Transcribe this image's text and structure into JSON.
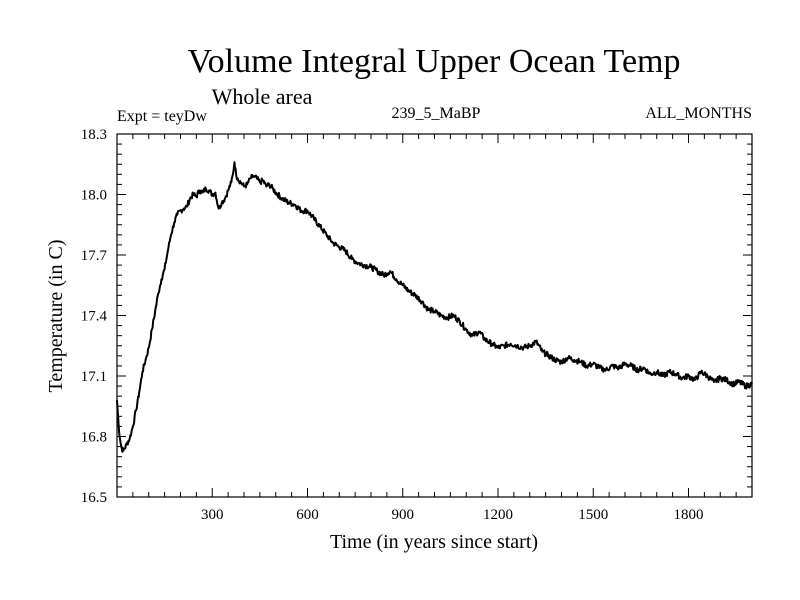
{
  "chart_data": {
    "type": "line",
    "title": "Volume Integral Upper Ocean Temp",
    "subtitle": "Whole area",
    "expt_label": "Expt = teyDw",
    "run_label": "239_5_MaBP",
    "period_label": "ALL_MONTHS",
    "xlabel": "Time (in years since start)",
    "ylabel": "Temperature (in C)",
    "xlim": [
      0,
      2000
    ],
    "ylim": [
      16.5,
      18.3
    ],
    "xticks": [
      300,
      600,
      900,
      1200,
      1500,
      1800
    ],
    "xtick_labels": [
      "300",
      "600",
      "900",
      "1200",
      "1500",
      "1800"
    ],
    "yticks": [
      16.5,
      16.8,
      17.1,
      17.4,
      17.7,
      18.0,
      18.3
    ],
    "ytick_labels": [
      "16.5",
      "16.8",
      "17.1",
      "17.4",
      "17.7",
      "18.0",
      "18.3"
    ],
    "series": [
      {
        "name": "Temperature",
        "color": "#000000",
        "x": [
          0,
          5,
          10,
          15,
          20,
          30,
          40,
          50,
          60,
          70,
          80,
          90,
          100,
          110,
          120,
          130,
          140,
          150,
          160,
          170,
          180,
          190,
          200,
          210,
          220,
          230,
          240,
          250,
          260,
          270,
          280,
          290,
          300,
          310,
          320,
          330,
          340,
          350,
          360,
          365,
          370,
          375,
          380,
          390,
          400,
          410,
          420,
          430,
          440,
          450,
          460,
          470,
          480,
          490,
          500,
          520,
          540,
          560,
          580,
          600,
          620,
          640,
          660,
          680,
          700,
          720,
          740,
          760,
          780,
          800,
          820,
          840,
          860,
          880,
          900,
          920,
          940,
          960,
          980,
          1000,
          1020,
          1040,
          1060,
          1080,
          1100,
          1120,
          1140,
          1160,
          1180,
          1200,
          1220,
          1240,
          1260,
          1280,
          1300,
          1320,
          1340,
          1360,
          1380,
          1400,
          1420,
          1440,
          1460,
          1480,
          1500,
          1520,
          1540,
          1560,
          1580,
          1600,
          1620,
          1640,
          1660,
          1680,
          1700,
          1720,
          1740,
          1760,
          1780,
          1800,
          1820,
          1840,
          1860,
          1880,
          1900,
          1920,
          1940,
          1960,
          1980,
          2000
        ],
        "y": [
          16.98,
          16.86,
          16.78,
          16.74,
          16.73,
          16.76,
          16.79,
          16.85,
          16.93,
          17.02,
          17.12,
          17.18,
          17.24,
          17.33,
          17.42,
          17.51,
          17.58,
          17.63,
          17.72,
          17.8,
          17.86,
          17.9,
          17.92,
          17.93,
          17.94,
          17.98,
          18.0,
          17.99,
          18.02,
          18.01,
          18.03,
          18.02,
          18.0,
          18.01,
          17.93,
          17.96,
          17.98,
          18.02,
          18.06,
          18.1,
          18.16,
          18.1,
          18.08,
          18.06,
          18.04,
          18.05,
          18.08,
          18.09,
          18.08,
          18.06,
          18.07,
          18.04,
          18.05,
          18.03,
          18.01,
          17.98,
          17.96,
          17.95,
          17.92,
          17.92,
          17.88,
          17.84,
          17.8,
          17.76,
          17.74,
          17.72,
          17.68,
          17.66,
          17.65,
          17.64,
          17.62,
          17.6,
          17.62,
          17.58,
          17.55,
          17.52,
          17.5,
          17.47,
          17.43,
          17.42,
          17.4,
          17.39,
          17.4,
          17.37,
          17.33,
          17.3,
          17.32,
          17.28,
          17.26,
          17.24,
          17.25,
          17.26,
          17.25,
          17.24,
          17.25,
          17.27,
          17.22,
          17.2,
          17.18,
          17.17,
          17.19,
          17.18,
          17.17,
          17.15,
          17.16,
          17.14,
          17.13,
          17.15,
          17.14,
          17.16,
          17.15,
          17.13,
          17.14,
          17.11,
          17.12,
          17.1,
          17.12,
          17.11,
          17.09,
          17.1,
          17.08,
          17.12,
          17.1,
          17.07,
          17.09,
          17.08,
          17.06,
          17.07,
          17.05,
          17.06
        ]
      }
    ]
  }
}
